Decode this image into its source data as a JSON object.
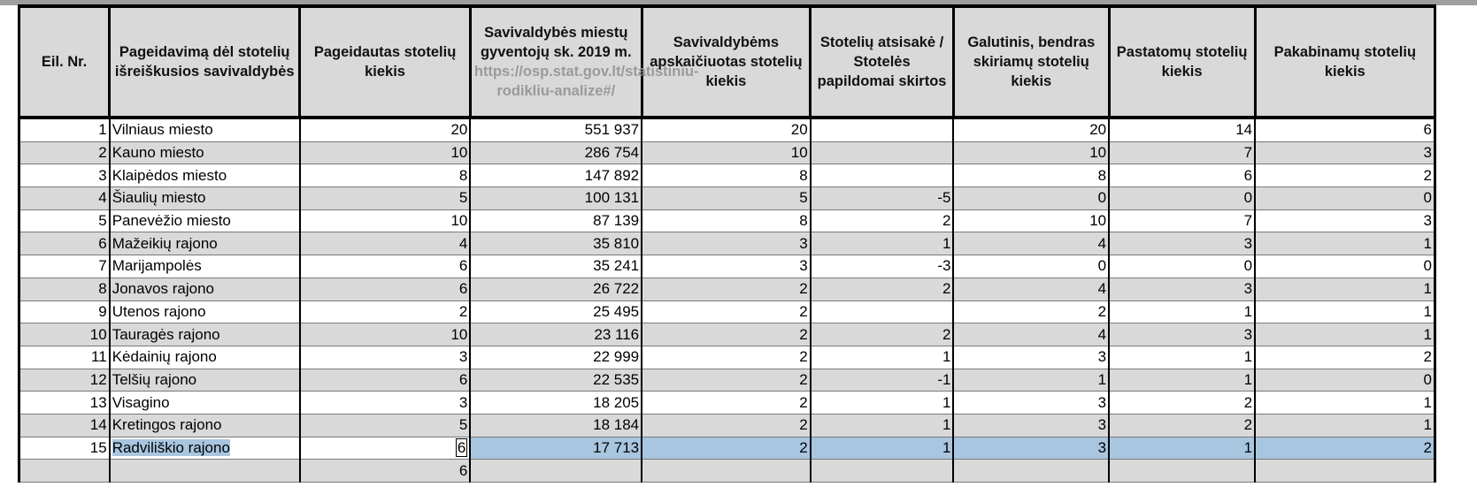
{
  "headers": {
    "nr": "Eil. Nr.",
    "municipality": "Pageidavimą dėl stotelių išreiškusios savivaldybės",
    "requested": "Pageidautas stotelių kiekis",
    "population_title": "Savivaldybės miestų gyventojų sk. 2019 m.",
    "population_url": "https://osp.stat.gov.lt/statistiniu-rodikliu-analize#/",
    "calculated": "Savivaldybėms apskaičiuotas stotelių kiekis",
    "adjusted": "Stotelių atsisakė / Stotelės papildomai skirtos",
    "final": "Galutinis, bendras skiriamų stotelių kiekis",
    "built": "Pastatomų stotelių kiekis",
    "hung": "Pakabinamų stotelių kiekis"
  },
  "rows": [
    {
      "nr": "1",
      "name": "Vilniaus miesto",
      "requested": "20",
      "population": "551 937",
      "calculated": "20",
      "adjusted": "",
      "final": "20",
      "built": "14",
      "hung": "6"
    },
    {
      "nr": "2",
      "name": "Kauno miesto",
      "requested": "10",
      "population": "286 754",
      "calculated": "10",
      "adjusted": "",
      "final": "10",
      "built": "7",
      "hung": "3"
    },
    {
      "nr": "3",
      "name": "Klaipėdos miesto",
      "requested": "8",
      "population": "147 892",
      "calculated": "8",
      "adjusted": "",
      "final": "8",
      "built": "6",
      "hung": "2"
    },
    {
      "nr": "4",
      "name": "Šiaulių miesto",
      "requested": "5",
      "population": "100 131",
      "calculated": "5",
      "adjusted": "-5",
      "final": "0",
      "built": "0",
      "hung": "0"
    },
    {
      "nr": "5",
      "name": "Panevėžio miesto",
      "requested": "10",
      "population": "87 139",
      "calculated": "8",
      "adjusted": "2",
      "final": "10",
      "built": "7",
      "hung": "3"
    },
    {
      "nr": "6",
      "name": "Mažeikių rajono",
      "requested": "4",
      "population": "35 810",
      "calculated": "3",
      "adjusted": "1",
      "final": "4",
      "built": "3",
      "hung": "1"
    },
    {
      "nr": "7",
      "name": "Marijampolės",
      "requested": "6",
      "population": "35 241",
      "calculated": "3",
      "adjusted": "-3",
      "final": "0",
      "built": "0",
      "hung": "0"
    },
    {
      "nr": "8",
      "name": "Jonavos rajono",
      "requested": "6",
      "population": "26 722",
      "calculated": "2",
      "adjusted": "2",
      "final": "4",
      "built": "3",
      "hung": "1"
    },
    {
      "nr": "9",
      "name": "Utenos rajono",
      "requested": "2",
      "population": "25 495",
      "calculated": "2",
      "adjusted": "",
      "final": "2",
      "built": "1",
      "hung": "1"
    },
    {
      "nr": "10",
      "name": "Tauragės rajono",
      "requested": "10",
      "population": "23 116",
      "calculated": "2",
      "adjusted": "2",
      "final": "4",
      "built": "3",
      "hung": "1"
    },
    {
      "nr": "11",
      "name": "Kėdainių rajono",
      "requested": "3",
      "population": "22 999",
      "calculated": "2",
      "adjusted": "1",
      "final": "3",
      "built": "1",
      "hung": "2"
    },
    {
      "nr": "12",
      "name": "Telšių rajono",
      "requested": "6",
      "population": "22 535",
      "calculated": "2",
      "adjusted": "-1",
      "final": "1",
      "built": "1",
      "hung": "0"
    },
    {
      "nr": "13",
      "name": "Visagino",
      "requested": "3",
      "population": "18 205",
      "calculated": "2",
      "adjusted": "1",
      "final": "3",
      "built": "2",
      "hung": "1"
    },
    {
      "nr": "14",
      "name": "Kretingos rajono",
      "requested": "5",
      "population": "18 184",
      "calculated": "2",
      "adjusted": "1",
      "final": "3",
      "built": "2",
      "hung": "1"
    },
    {
      "nr": "15",
      "name": "Radviliškio rajono",
      "requested": "6",
      "population": "17 713",
      "calculated": "2",
      "adjusted": "1",
      "final": "3",
      "built": "1",
      "hung": "2"
    }
  ],
  "partial_row": {
    "requested": "6"
  },
  "colors": {
    "header_bg": "#d9d9d9",
    "stripe": "#d9d9d9",
    "selection": "#a9c6e0",
    "url_text": "#9a9a9a"
  }
}
